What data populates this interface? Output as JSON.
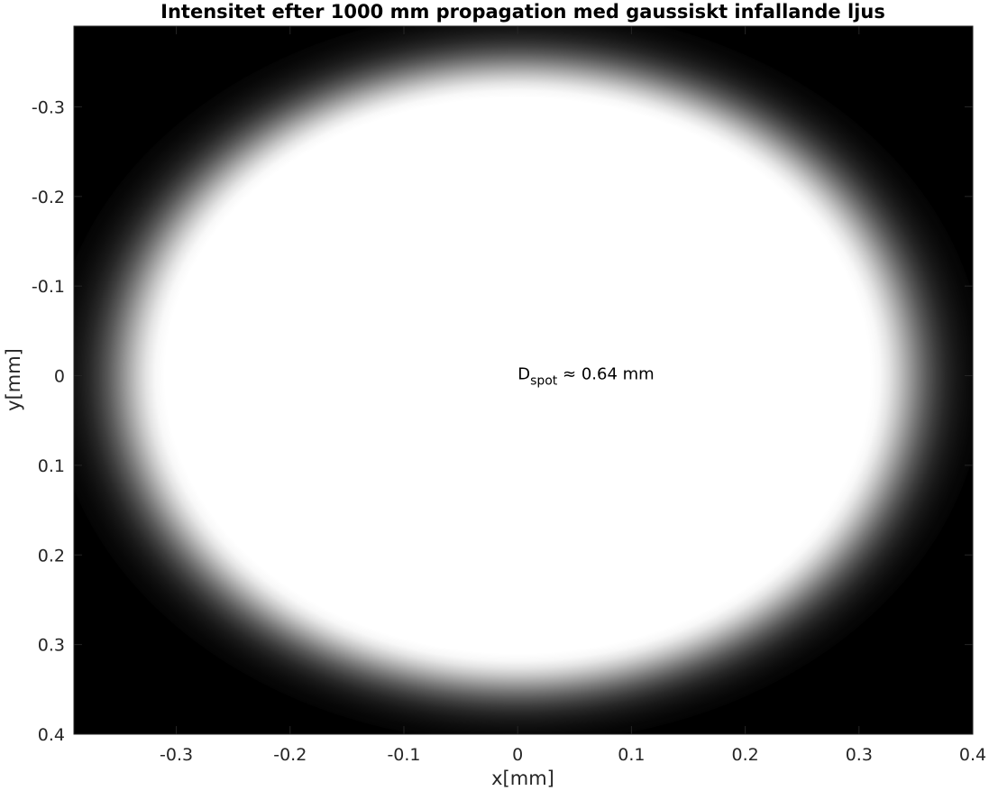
{
  "chart_data": {
    "type": "heatmap",
    "title": "Intensitet efter 1000 mm propagation med gaussiskt infallande ljus",
    "xlabel": "x[mm]",
    "ylabel": "y[mm]",
    "xlim": [
      -0.39,
      0.4
    ],
    "ylim": [
      -0.39,
      0.4
    ],
    "y_reversed": true,
    "x_ticks": [
      -0.3,
      -0.2,
      -0.1,
      0,
      0.1,
      0.2,
      0.3,
      0.4
    ],
    "x_tick_labels": [
      "-0.3",
      "-0.2",
      "-0.1",
      "0",
      "0.1",
      "0.2",
      "0.3",
      "0.4"
    ],
    "y_ticks": [
      -0.3,
      -0.2,
      -0.1,
      0,
      0.1,
      0.2,
      0.3,
      0.4
    ],
    "y_tick_labels": [
      "-0.3",
      "-0.2",
      "-0.1",
      "0",
      "0.1",
      "0.2",
      "0.3",
      "0.4"
    ],
    "colormap": "gray",
    "colors": {
      "low": "#000000",
      "high": "#ffffff"
    },
    "spot": {
      "center": [
        0,
        0
      ],
      "saturated_radius_x": 0.31,
      "saturated_radius_y": 0.31,
      "falloff_width": 0.1
    },
    "annotation": {
      "x": 0,
      "y": 0,
      "text_main": "D",
      "text_sub": "spot",
      "text_rest": " ≈ 0.64 mm"
    }
  }
}
